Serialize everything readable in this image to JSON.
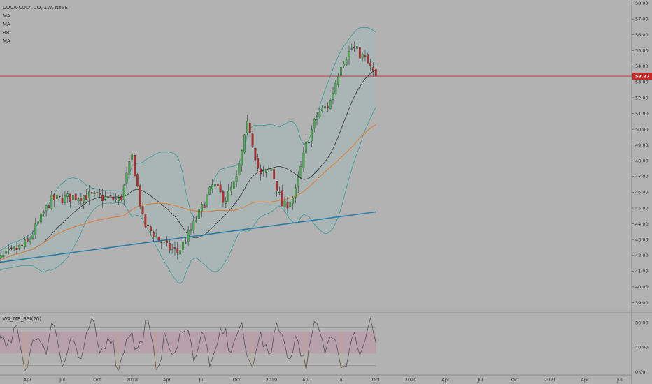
{
  "legend": {
    "symbol_line": "COCA-COLA CO, 1W, NYSE",
    "studies": [
      "MA",
      "MA",
      "BB",
      "MA"
    ]
  },
  "indicator": {
    "name": "WA_MR_RSI(20)"
  },
  "price_tag": {
    "value": "53.37",
    "color": "#c62828"
  },
  "colors": {
    "up": "#4caf50",
    "down": "#c62828",
    "wick": "#333333",
    "bb_band": "#3e9a9a",
    "bb_fill": "#a4b8b8",
    "ma20": "#333333",
    "ma50": "#e07b32",
    "ma200": "#2f7ea8",
    "price_line": "#c62828",
    "osc_line": "#555555",
    "osc_zone": "#b99aa8"
  },
  "chart_data": {
    "type": "candlestick",
    "title": "COCA-COLA CO, 1W, NYSE",
    "y_ticks": [
      "58.00",
      "57.00",
      "56.00",
      "55.00",
      "54.00",
      "53.00",
      "52.00",
      "51.00",
      "50.00",
      "49.00",
      "48.00",
      "47.00",
      "46.00",
      "45.00",
      "44.00",
      "43.00",
      "42.00",
      "41.00",
      "40.00",
      "39.00"
    ],
    "ylim": [
      38.4,
      58.2
    ],
    "x_ticks": [
      "Apr",
      "Jul",
      "Oct",
      "2018",
      "Apr",
      "Jul",
      "Oct",
      "2019",
      "Apr",
      "Jul",
      "Oct",
      "2020",
      "Apr",
      "Jul",
      "Oct",
      "2021",
      "Apr",
      "Jul"
    ],
    "last_price": 53.37,
    "ohlc_anchors": [
      {
        "date": "2017-01",
        "close": 41.5
      },
      {
        "date": "2017-04",
        "close": 42.8
      },
      {
        "date": "2017-06",
        "close": 45.5
      },
      {
        "date": "2017-09",
        "close": 45.8
      },
      {
        "date": "2017-12",
        "close": 45.5
      },
      {
        "date": "2018-01",
        "close": 48.3
      },
      {
        "date": "2018-02",
        "close": 44.0
      },
      {
        "date": "2018-04",
        "close": 42.5
      },
      {
        "date": "2018-05",
        "close": 42.2
      },
      {
        "date": "2018-06",
        "close": 43.5
      },
      {
        "date": "2018-08",
        "close": 46.5
      },
      {
        "date": "2018-09",
        "close": 45.5
      },
      {
        "date": "2018-10",
        "close": 46.8
      },
      {
        "date": "2018-11",
        "close": 50.5
      },
      {
        "date": "2018-12",
        "close": 47.0
      },
      {
        "date": "2019-01",
        "close": 47.5
      },
      {
        "date": "2019-02",
        "close": 45.0
      },
      {
        "date": "2019-03",
        "close": 45.8
      },
      {
        "date": "2019-04",
        "close": 49.0
      },
      {
        "date": "2019-05",
        "close": 51.0
      },
      {
        "date": "2019-06",
        "close": 51.6
      },
      {
        "date": "2019-07",
        "close": 54.2
      },
      {
        "date": "2019-08",
        "close": 55.2
      },
      {
        "date": "2019-09",
        "close": 54.5
      },
      {
        "date": "2019-10",
        "close": 53.37
      }
    ],
    "series": [
      {
        "name": "MA",
        "kind": "moving-average"
      },
      {
        "name": "MA",
        "kind": "moving-average"
      },
      {
        "name": "BB",
        "kind": "bollinger-bands"
      },
      {
        "name": "MA",
        "kind": "moving-average"
      }
    ],
    "indicator": {
      "name": "WA_MR_RSI(20)",
      "y_ticks": [
        "80.00",
        "40.00",
        "0.00"
      ],
      "ylim": [
        -5,
        95
      ],
      "zone": [
        30,
        65
      ]
    }
  }
}
